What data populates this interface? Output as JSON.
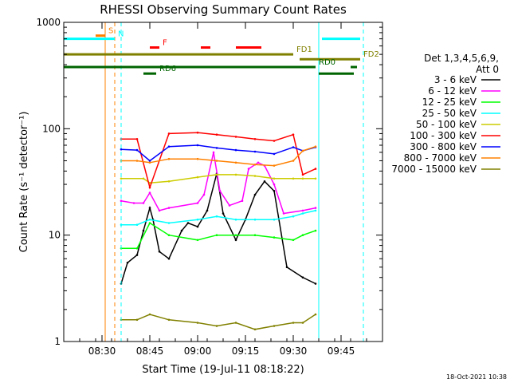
{
  "chart_data": {
    "type": "line",
    "title": "RHESSI Observing Summary Count Rates",
    "xlabel": "Start Time (19-Jul-11 08:18:22)",
    "ylabel": "Count Rate (s⁻¹ detector⁻¹)",
    "xlim": [
      "08:18",
      "09:58"
    ],
    "ylim": [
      1,
      1000
    ],
    "y_scale": "log",
    "x_ticks": [
      "08:30",
      "08:45",
      "09:00",
      "09:15",
      "09:30",
      "09:45"
    ],
    "y_ticks": [
      "1",
      "10",
      "100",
      "1000"
    ],
    "legend_header": [
      "Det 1,3,4,5,6,9,",
      "Att 0"
    ],
    "footer": "18-Oct-2021 10:38",
    "series": [
      {
        "name": "3 - 6 keV",
        "color": "#000000",
        "x": [
          "08:36",
          "08:38",
          "08:41",
          "08:43",
          "08:45",
          "08:46",
          "08:48",
          "08:51",
          "08:55",
          "08:57",
          "09:00",
          "09:03",
          "09:06",
          "09:08",
          "09:12",
          "09:15",
          "09:18",
          "09:21",
          "09:24",
          "09:28",
          "09:33",
          "09:37"
        ],
        "y": [
          3.5,
          5.5,
          6.5,
          11,
          18,
          14,
          7,
          6,
          11,
          13,
          12,
          17,
          38,
          16,
          9,
          14,
          24,
          32,
          26,
          5,
          4,
          3.5
        ]
      },
      {
        "name": "6 - 12 keV",
        "color": "#ff00ff",
        "x": [
          "08:36",
          "08:40",
          "08:43",
          "08:45",
          "08:48",
          "08:51",
          "09:00",
          "09:02",
          "09:05",
          "09:07",
          "09:10",
          "09:14",
          "09:16",
          "09:19",
          "09:21",
          "09:24",
          "09:27",
          "09:33",
          "09:37"
        ],
        "y": [
          21,
          20,
          20,
          25,
          17,
          18,
          20,
          24,
          60,
          26,
          19,
          21,
          42,
          48,
          45,
          30,
          16,
          17,
          18
        ]
      },
      {
        "name": "12 - 25 keV",
        "color": "#00ff00",
        "x": [
          "08:36",
          "08:41",
          "08:45",
          "08:51",
          "09:00",
          "09:06",
          "09:12",
          "09:18",
          "09:24",
          "09:30",
          "09:33",
          "09:37"
        ],
        "y": [
          7.5,
          7.5,
          13,
          10,
          9,
          10,
          10,
          10,
          9.5,
          9,
          10,
          11
        ]
      },
      {
        "name": "25 - 50 keV",
        "color": "#00ffff",
        "x": [
          "08:36",
          "08:41",
          "08:45",
          "08:51",
          "09:00",
          "09:06",
          "09:12",
          "09:18",
          "09:24",
          "09:30",
          "09:33",
          "09:37"
        ],
        "y": [
          12.5,
          12.5,
          14,
          13,
          14,
          15,
          14,
          14,
          14,
          15,
          16,
          17
        ]
      },
      {
        "name": "50 - 100 keV",
        "color": "#cccc00",
        "x": [
          "08:36",
          "08:43",
          "08:45",
          "08:51",
          "09:00",
          "09:06",
          "09:12",
          "09:18",
          "09:24",
          "09:30",
          "09:33",
          "09:37"
        ],
        "y": [
          34,
          34,
          31,
          32,
          35,
          37,
          37,
          36,
          34,
          34,
          34,
          34
        ]
      },
      {
        "name": "100 - 300 keV",
        "color": "#ff0000",
        "x": [
          "08:36",
          "08:41",
          "08:45",
          "08:51",
          "09:00",
          "09:06",
          "09:12",
          "09:18",
          "09:24",
          "09:30",
          "09:33",
          "09:37"
        ],
        "y": [
          80,
          80,
          28,
          90,
          92,
          88,
          84,
          80,
          77,
          88,
          37,
          42
        ]
      },
      {
        "name": "300 - 800 keV",
        "color": "#0000ff",
        "x": [
          "08:36",
          "08:41",
          "08:45",
          "08:51",
          "09:00",
          "09:06",
          "09:12",
          "09:18",
          "09:24",
          "09:30",
          "09:33",
          "09:37"
        ],
        "y": [
          64,
          63,
          50,
          68,
          70,
          66,
          63,
          61,
          58,
          67,
          62,
          67
        ]
      },
      {
        "name": "800 - 7000 keV",
        "color": "#ff8000",
        "x": [
          "08:36",
          "08:41",
          "08:45",
          "08:51",
          "09:00",
          "09:06",
          "09:12",
          "09:18",
          "09:24",
          "09:30",
          "09:33",
          "09:37"
        ],
        "y": [
          50,
          50,
          48,
          52,
          52,
          50,
          48,
          46,
          45,
          50,
          62,
          68
        ]
      },
      {
        "name": "7000 - 15000 keV",
        "color": "#808000",
        "x": [
          "08:36",
          "08:41",
          "08:45",
          "08:51",
          "09:00",
          "09:06",
          "09:12",
          "09:18",
          "09:24",
          "09:30",
          "09:33",
          "09:37"
        ],
        "y": [
          1.6,
          1.6,
          1.8,
          1.6,
          1.5,
          1.4,
          1.5,
          1.3,
          1.4,
          1.5,
          1.5,
          1.8
        ]
      }
    ],
    "flag_bars": [
      {
        "label": "S",
        "color": "#ff8000",
        "y": 750,
        "segments": [
          [
            "08:28",
            "08:31"
          ]
        ]
      },
      {
        "label": "N",
        "color": "#00ffff",
        "y": 700,
        "segments": [
          [
            "08:18",
            "08:34"
          ],
          [
            "09:39",
            "09:51"
          ]
        ]
      },
      {
        "label": "F",
        "color": "#ff0000",
        "y": 580,
        "segments": [
          [
            "08:45",
            "08:48"
          ],
          [
            "09:01",
            "09:04"
          ],
          [
            "09:12",
            "09:20"
          ]
        ]
      },
      {
        "label": "FD1",
        "color": "#808000",
        "y": 500,
        "segments": [
          [
            "08:18",
            "09:30"
          ]
        ]
      },
      {
        "label": "FD2",
        "color": "#808000",
        "y": 450,
        "segments": [
          [
            "09:32",
            "09:51"
          ]
        ]
      },
      {
        "label": "RD0",
        "color": "#006400",
        "y": 380,
        "segments": [
          [
            "08:18",
            "09:37"
          ],
          [
            "09:48",
            "09:50"
          ]
        ]
      },
      {
        "label": "RD6",
        "color": "#006400",
        "y": 330,
        "segments": [
          [
            "08:43",
            "08:47"
          ],
          [
            "09:38",
            "09:49"
          ]
        ]
      }
    ],
    "vertical_lines": [
      {
        "time": "08:31",
        "color": "#ff8000",
        "style": "solid"
      },
      {
        "time": "08:34",
        "color": "#ff8000",
        "style": "dashed"
      },
      {
        "time": "08:36",
        "color": "#00ffff",
        "style": "dashed"
      },
      {
        "time": "09:38",
        "color": "#00ffff",
        "style": "solid"
      },
      {
        "time": "09:52",
        "color": "#00ffff",
        "style": "dashed"
      }
    ]
  }
}
